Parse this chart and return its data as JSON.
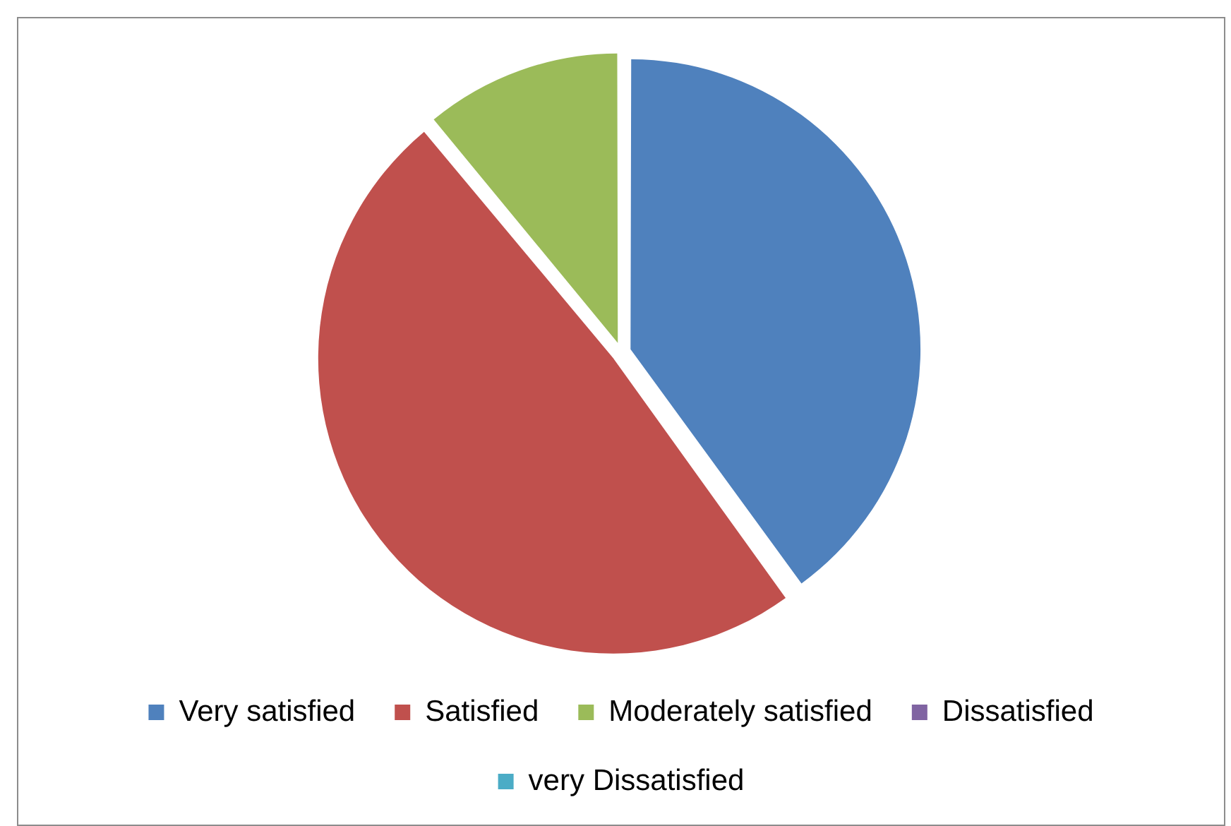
{
  "chart_data": {
    "type": "pie",
    "categories": [
      "Very satisfied",
      "Satisfied",
      "Moderately satisfied",
      "Dissatisfied",
      "very Dissatisfied"
    ],
    "values": [
      40,
      49,
      11,
      0,
      0
    ],
    "colors": [
      "#4f81bd",
      "#c0504d",
      "#9bbb59",
      "#8064a2",
      "#4bacc6"
    ],
    "legend": "bottom"
  }
}
